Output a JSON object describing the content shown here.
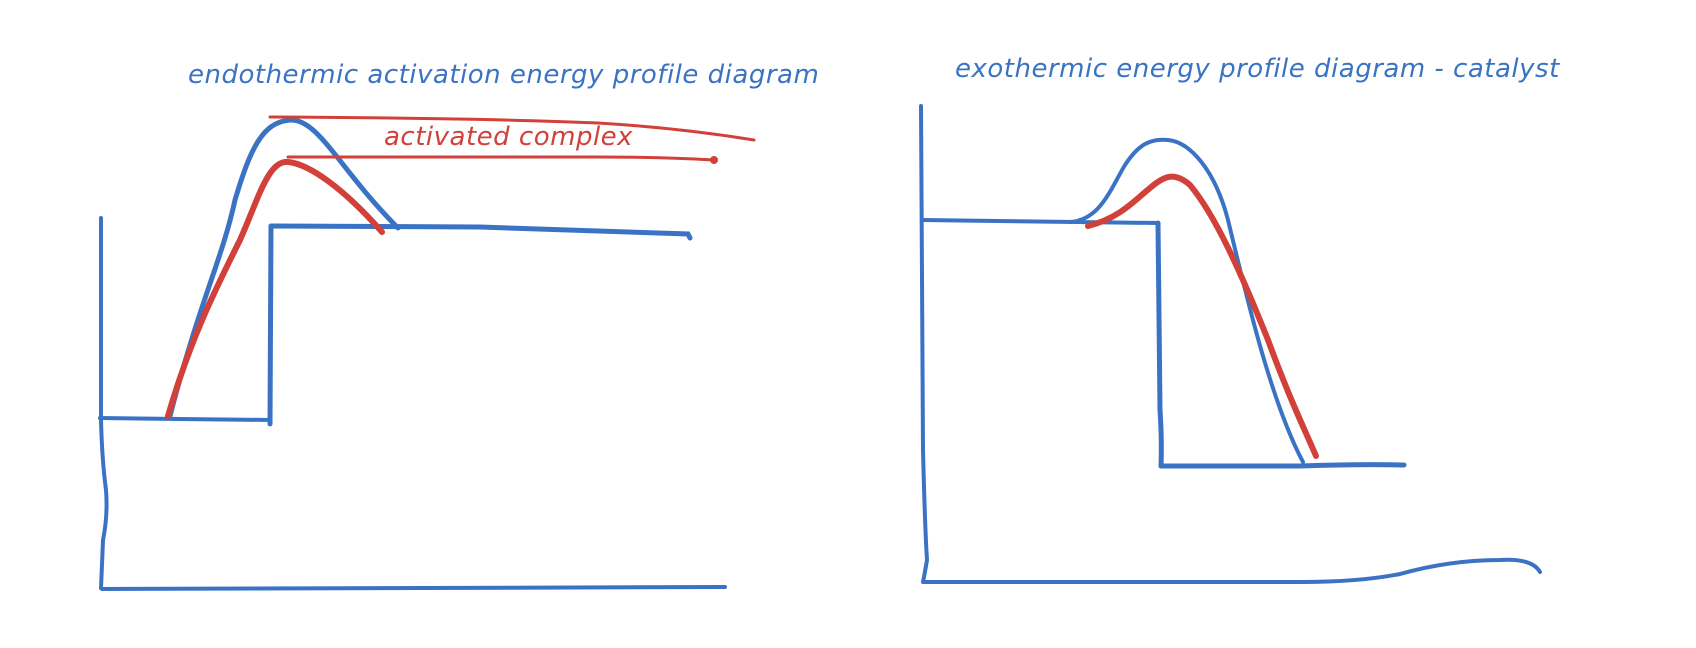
{
  "colors": {
    "blue": "#3a73c4",
    "red": "#d2403a",
    "background": "#ffffff"
  },
  "diagrams": [
    {
      "title": "endothermic activation energy profile diagram",
      "annotation": "activated complex"
    },
    {
      "title": "exothermic energy profile diagram - catalyst"
    }
  ]
}
